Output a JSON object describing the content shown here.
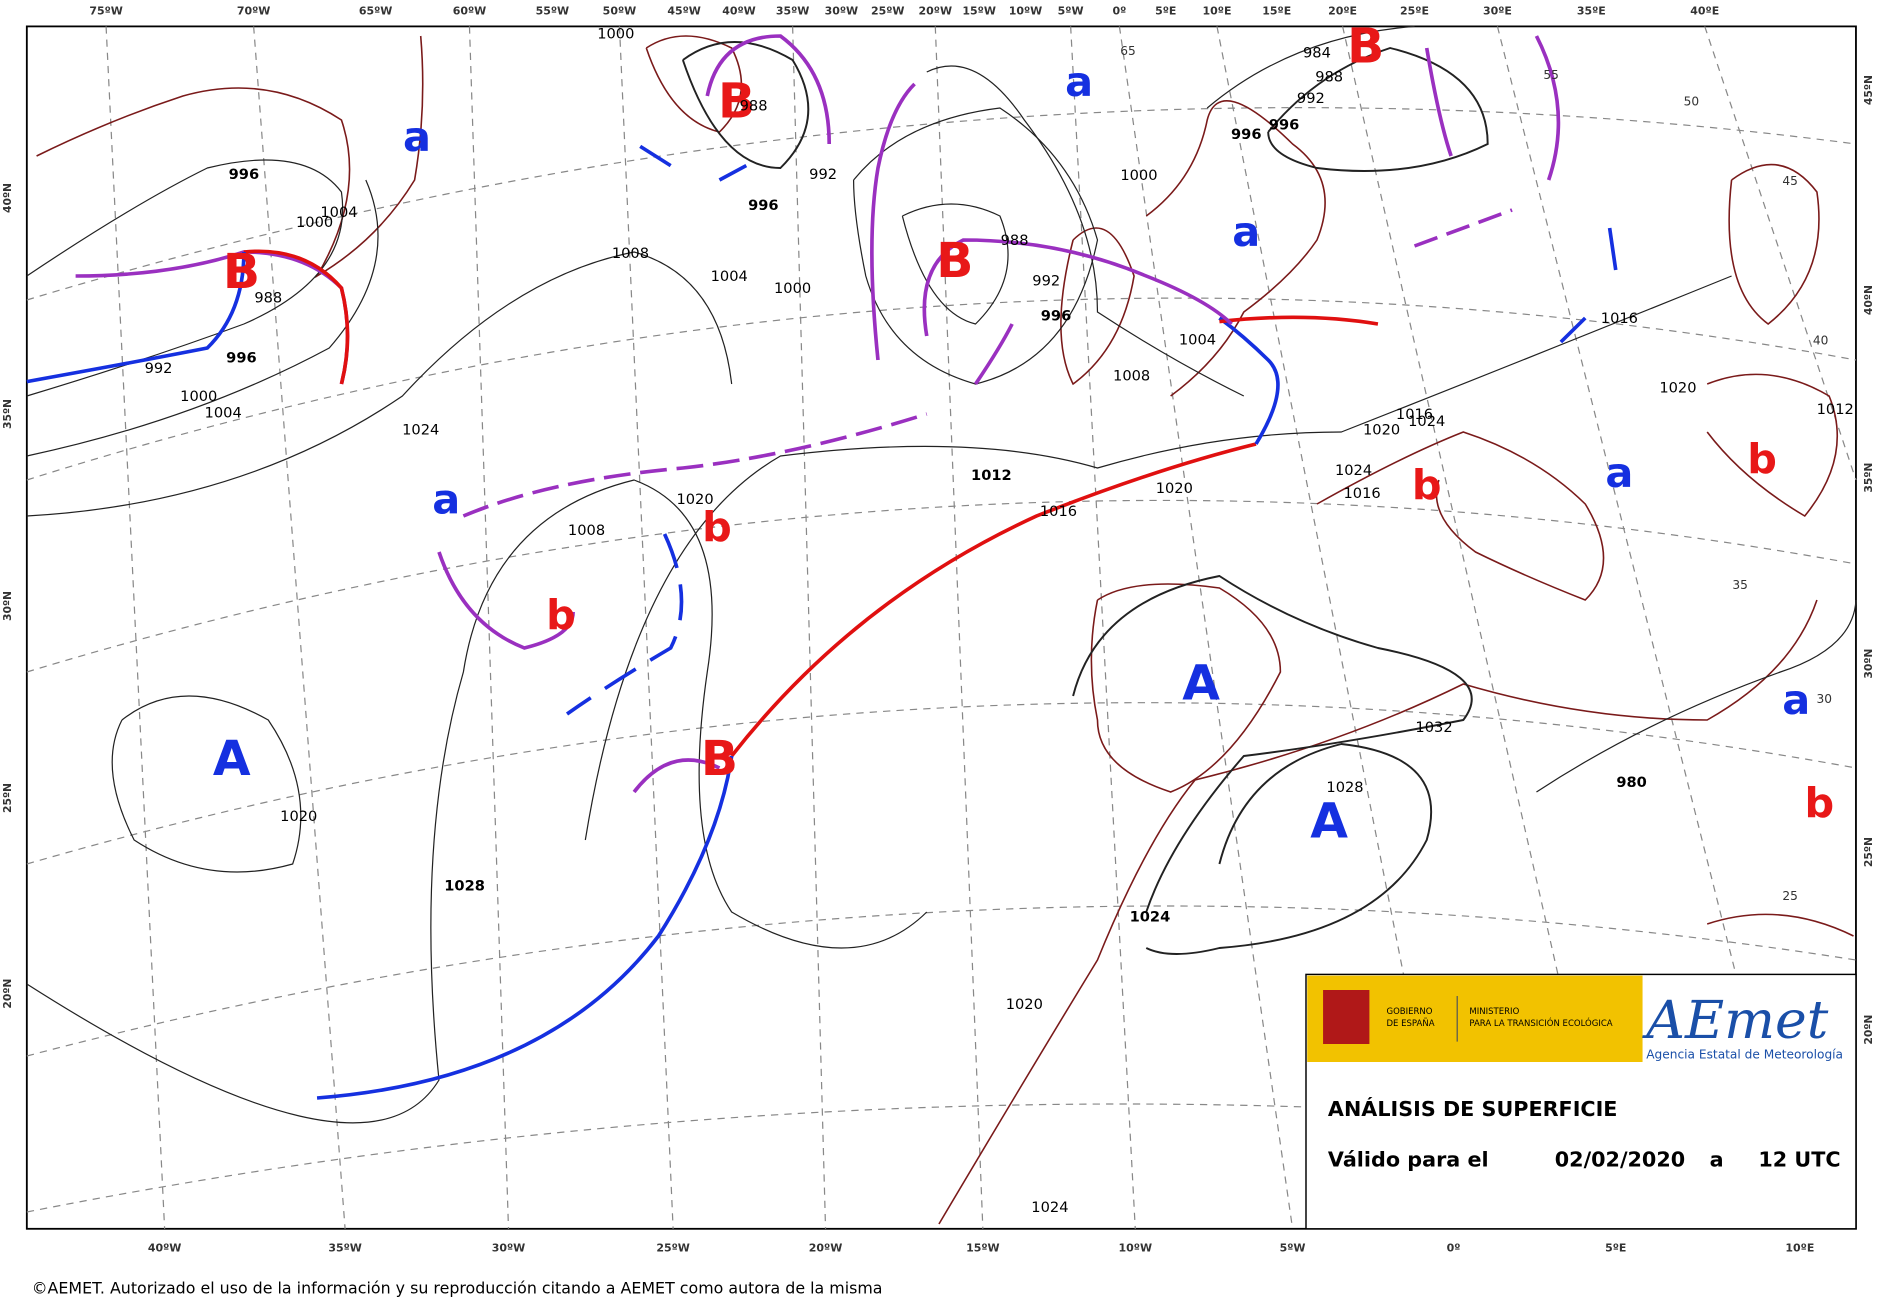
{
  "top_longitudes": [
    "75ºW",
    "70ºW",
    "65ºW",
    "60ºW",
    "55ºW",
    "50ºW",
    "45ºW",
    "40ºW",
    "35ºW",
    "30ºW",
    "25ºW",
    "20ºW",
    "15ºW",
    "10ºW",
    "5ºW",
    "0º",
    "5ºE",
    "10ºE",
    "15ºE",
    "20ºE",
    "25ºE",
    "30ºE",
    "35ºE",
    "40ºE"
  ],
  "bottom_longitudes": [
    "40ºW",
    "35ºW",
    "30ºW",
    "25ºW",
    "20ºW",
    "15ºW",
    "10ºW",
    "5ºW",
    "0º",
    "5ºE",
    "10ºE"
  ],
  "left_latitudes": [
    "40ºN",
    "35ºN",
    "30ºN",
    "25ºN",
    "20ºN"
  ],
  "right_latitudes": [
    "45ºN",
    "40ºN",
    "35ºN",
    "30ºN",
    "25ºN",
    "20ºN"
  ],
  "grid_latitudes": [
    "65",
    "55",
    "50",
    "45",
    "40",
    "35",
    "30",
    "25"
  ],
  "pressure_centers": [
    {
      "label": "B",
      "kind": "low"
    },
    {
      "label": "B",
      "kind": "low"
    },
    {
      "label": "B",
      "kind": "low"
    },
    {
      "label": "B",
      "kind": "low"
    },
    {
      "label": "B",
      "kind": "low"
    },
    {
      "label": "b",
      "kind": "low"
    },
    {
      "label": "b",
      "kind": "low"
    },
    {
      "label": "b",
      "kind": "low"
    },
    {
      "label": "b",
      "kind": "low"
    },
    {
      "label": "b",
      "kind": "low"
    },
    {
      "label": "A",
      "kind": "high"
    },
    {
      "label": "A",
      "kind": "high"
    },
    {
      "label": "A",
      "kind": "high"
    },
    {
      "label": "a",
      "kind": "high"
    },
    {
      "label": "a",
      "kind": "high"
    },
    {
      "label": "a",
      "kind": "high"
    },
    {
      "label": "a",
      "kind": "high"
    },
    {
      "label": "a",
      "kind": "high"
    },
    {
      "label": "a",
      "kind": "high"
    }
  ],
  "isobar_labels": [
    "1000",
    "996",
    "1000",
    "1004",
    "988",
    "996",
    "992",
    "1000",
    "1004",
    "1008",
    "1004",
    "1000",
    "996",
    "992",
    "988",
    "988",
    "992",
    "996",
    "1000",
    "1004",
    "1008",
    "1012",
    "1016",
    "1020",
    "1020",
    "1016",
    "1024",
    "1024",
    "1016",
    "1016",
    "1020",
    "1012",
    "1008",
    "1020",
    "1024",
    "1020",
    "1028",
    "1032",
    "1028",
    "1024",
    "1020",
    "1024",
    "980",
    "984",
    "988",
    "992",
    "996",
    "996"
  ],
  "legend": {
    "government": [
      "GOBIERNO",
      "DE ESPAÑA"
    ],
    "ministry": [
      "MINISTERIO",
      "PARA LA TRANSICIÓN ECOLÓGICA"
    ],
    "agency_logo": "AEmet",
    "agency_name": "Agencia Estatal de Meteorología",
    "title": "ANÁLISIS DE SUPERFICIE",
    "valid_label": "Válido para el",
    "date": "02/02/2020",
    "at": "a",
    "time": "12 UTC"
  },
  "copyright": "©AEMET. Autorizado el uso de la información y su reproducción citando a AEMET como autora de la misma"
}
